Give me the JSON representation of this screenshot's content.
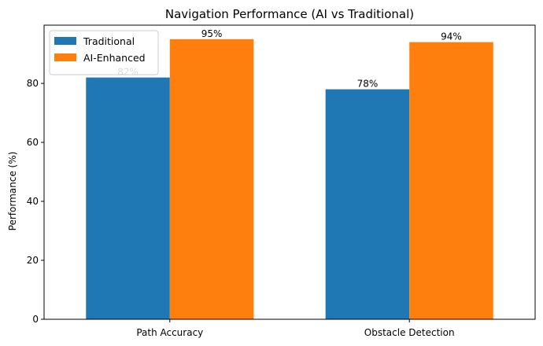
{
  "chart_data": {
    "type": "bar",
    "title": "Navigation Performance (AI vs Traditional)",
    "xlabel": "",
    "ylabel": "Performance (%)",
    "categories": [
      "Path Accuracy",
      "Obstacle Detection"
    ],
    "series": [
      {
        "name": "Traditional",
        "values": [
          82,
          78
        ],
        "color": "#1f77b4",
        "labels": [
          "82%",
          "78%"
        ]
      },
      {
        "name": "AI-Enhanced",
        "values": [
          95,
          94
        ],
        "color": "#ff7f0e",
        "labels": [
          "95%",
          "94%"
        ]
      }
    ],
    "ylim": [
      0,
      99.75
    ],
    "yticks": [
      0,
      20,
      40,
      60,
      80
    ],
    "grid": false,
    "legend_position": "top-left"
  }
}
